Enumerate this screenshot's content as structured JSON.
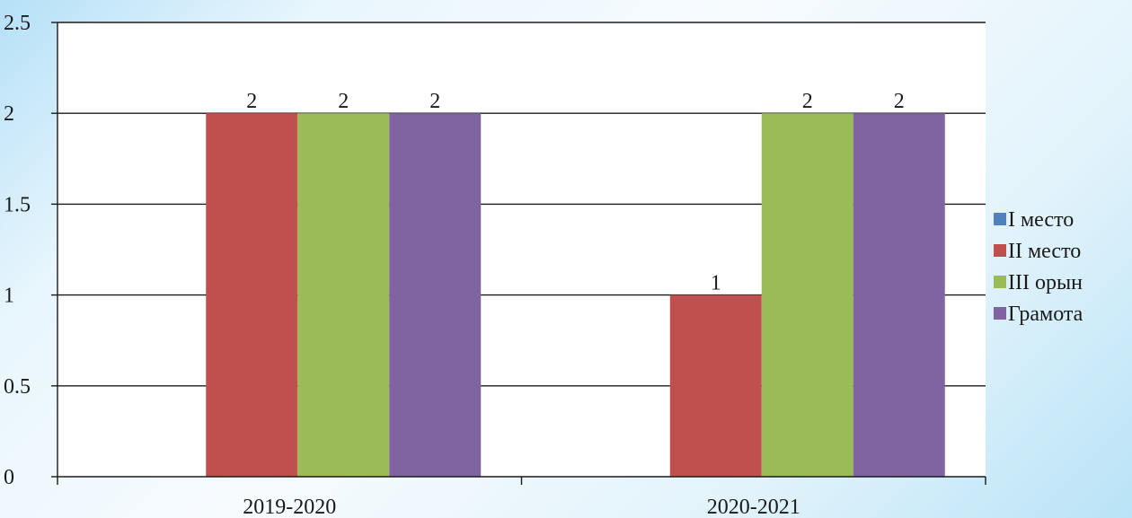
{
  "chart_data": {
    "type": "bar",
    "categories": [
      "2019-2020",
      "2020-2021"
    ],
    "series": [
      {
        "name": "I место",
        "color": "#4f81bd",
        "values": [
          0,
          0
        ]
      },
      {
        "name": "II место",
        "color": "#c0504d",
        "values": [
          2,
          1
        ]
      },
      {
        "name": "III орын",
        "color": "#9bbb59",
        "values": [
          2,
          2
        ]
      },
      {
        "name": "Грамота",
        "color": "#8064a2",
        "values": [
          2,
          2
        ]
      }
    ],
    "data_labels": [
      [
        "",
        ""
      ],
      [
        "2",
        "1"
      ],
      [
        "2",
        "2"
      ],
      [
        "2",
        "2"
      ]
    ],
    "ylim": [
      0,
      2.5
    ],
    "yticks": [
      "0",
      "0.5",
      "1",
      "1.5",
      "2",
      "2.5"
    ],
    "grid": true,
    "legend_position": "right"
  }
}
